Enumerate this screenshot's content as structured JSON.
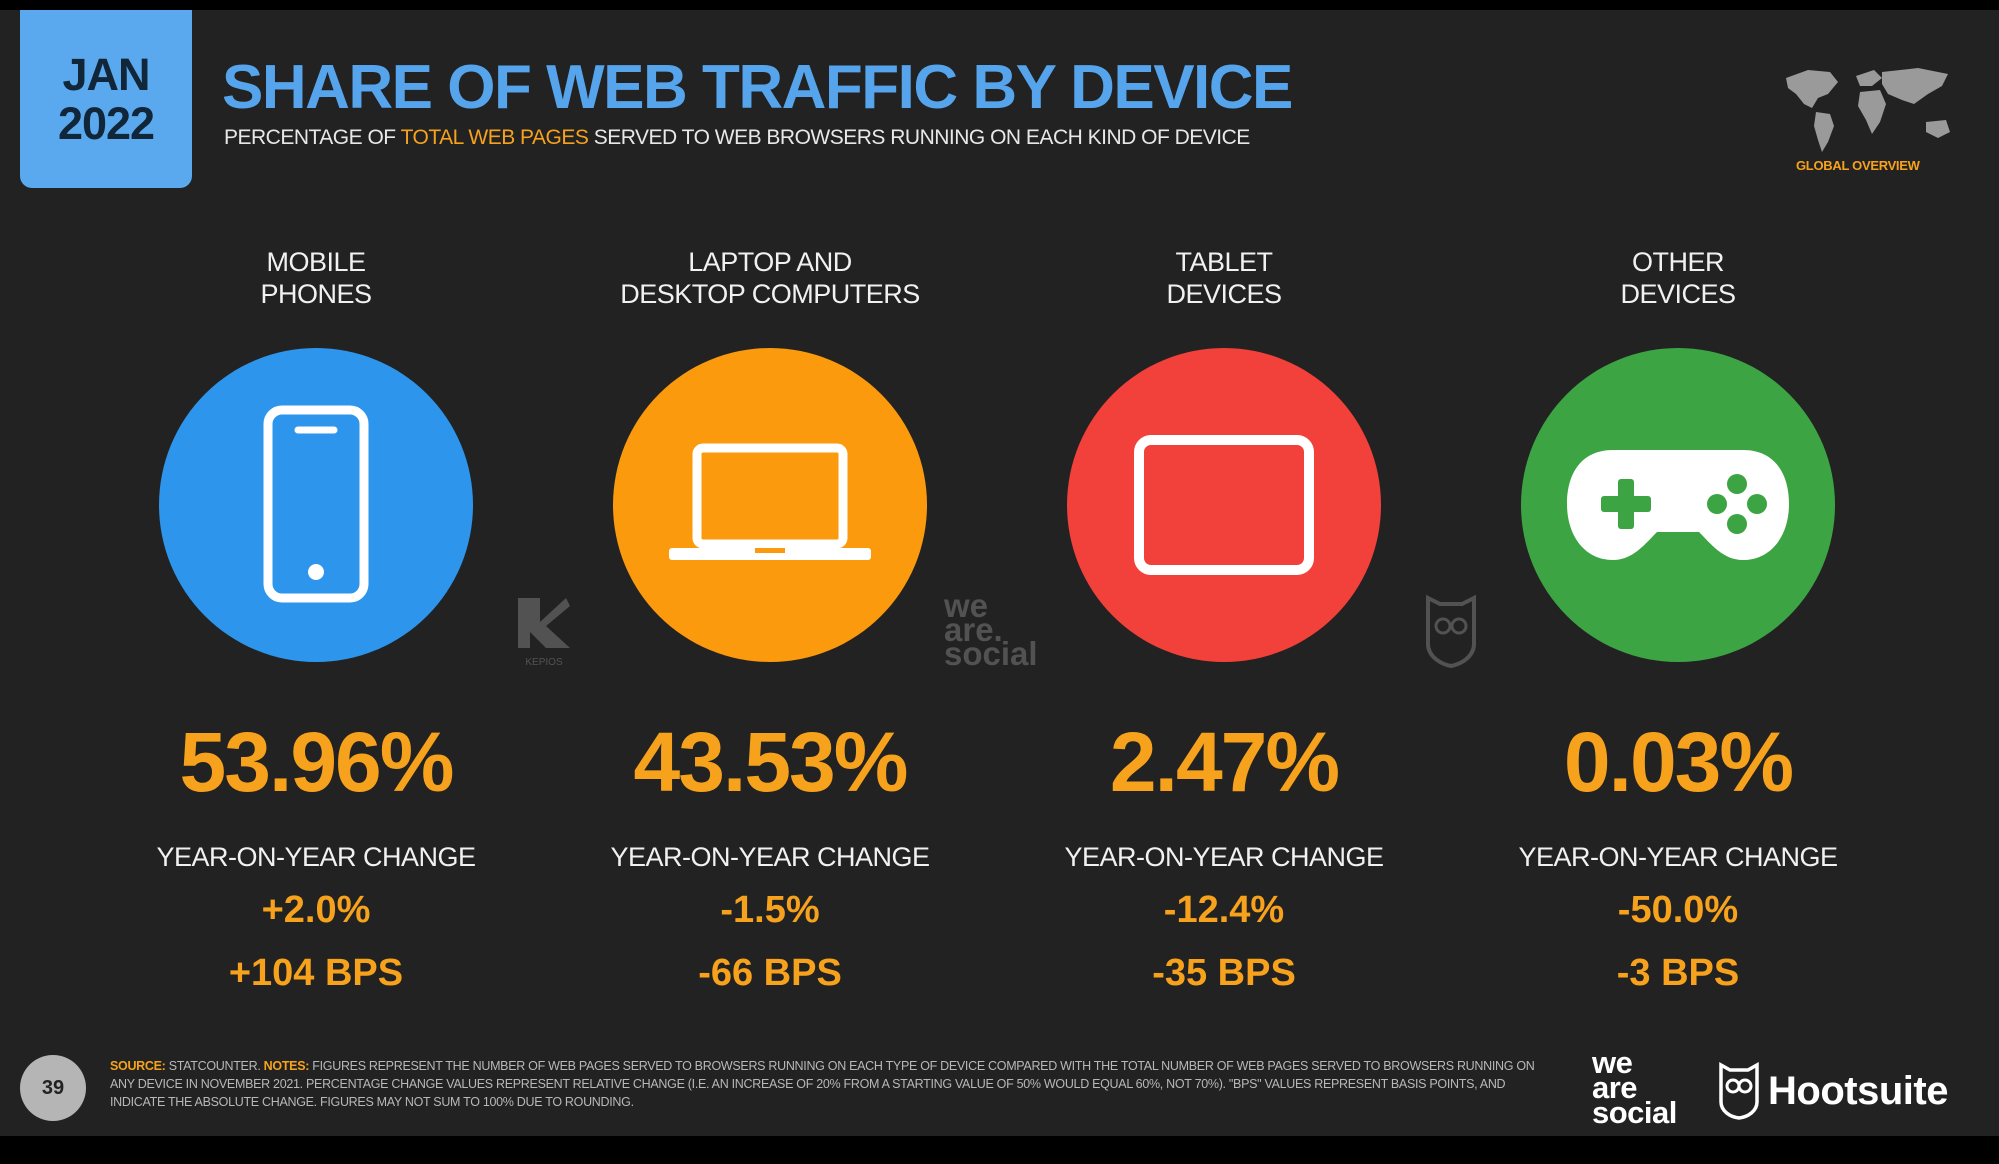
{
  "header": {
    "date_month": "JAN",
    "date_year": "2022",
    "title": "SHARE OF WEB TRAFFIC BY DEVICE",
    "subtitle_pre": "PERCENTAGE OF ",
    "subtitle_highlight": "TOTAL WEB PAGES",
    "subtitle_post": " SERVED TO WEB BROWSERS RUNNING ON EACH KIND OF DEVICE",
    "region_label": "GLOBAL OVERVIEW"
  },
  "devices": [
    {
      "name_line1": "MOBILE",
      "name_line2": "PHONES",
      "icon": "mobile-phone-icon",
      "color": "#2d96ec",
      "share": "53.96%",
      "yoy_label": "YEAR-ON-YEAR CHANGE",
      "yoy_change": "+2.0%",
      "yoy_bps": "+104 BPS"
    },
    {
      "name_line1": "LAPTOP AND",
      "name_line2": "DESKTOP COMPUTERS",
      "icon": "laptop-icon",
      "color": "#fb9a0d",
      "share": "43.53%",
      "yoy_label": "YEAR-ON-YEAR CHANGE",
      "yoy_change": "-1.5%",
      "yoy_bps": "-66 BPS"
    },
    {
      "name_line1": "TABLET",
      "name_line2": "DEVICES",
      "icon": "tablet-icon",
      "color": "#f2413a",
      "share": "2.47%",
      "yoy_label": "YEAR-ON-YEAR CHANGE",
      "yoy_change": "-12.4%",
      "yoy_bps": "-35 BPS"
    },
    {
      "name_line1": "OTHER",
      "name_line2": "DEVICES",
      "icon": "game-controller-icon",
      "color": "#3da444",
      "share": "0.03%",
      "yoy_label": "YEAR-ON-YEAR CHANGE",
      "yoy_change": "-50.0%",
      "yoy_bps": "-3 BPS"
    }
  ],
  "watermarks": {
    "kepios": "KEPIOS",
    "we_are_social": [
      "we",
      "are.",
      "social"
    ]
  },
  "footer": {
    "page_number": "39",
    "source_label": "SOURCE:",
    "source_text": " STATCOUNTER. ",
    "notes_label": "NOTES:",
    "notes_text": " FIGURES REPRESENT THE NUMBER OF WEB PAGES SERVED TO BROWSERS RUNNING ON EACH TYPE OF DEVICE COMPARED WITH THE TOTAL NUMBER OF WEB PAGES SERVED TO BROWSERS RUNNING ON ANY DEVICE IN NOVEMBER 2021. PERCENTAGE CHANGE VALUES REPRESENT RELATIVE CHANGE (I.E. AN INCREASE OF 20% FROM A STARTING VALUE OF 50% WOULD EQUAL 60%, NOT 70%). \"BPS\" VALUES REPRESENT BASIS POINTS, AND INDICATE THE ABSOLUTE CHANGE. FIGURES MAY NOT SUM TO 100% DUE TO ROUNDING.",
    "logo_was": [
      "we",
      "are",
      "social"
    ],
    "logo_hootsuite": "Hootsuite"
  }
}
